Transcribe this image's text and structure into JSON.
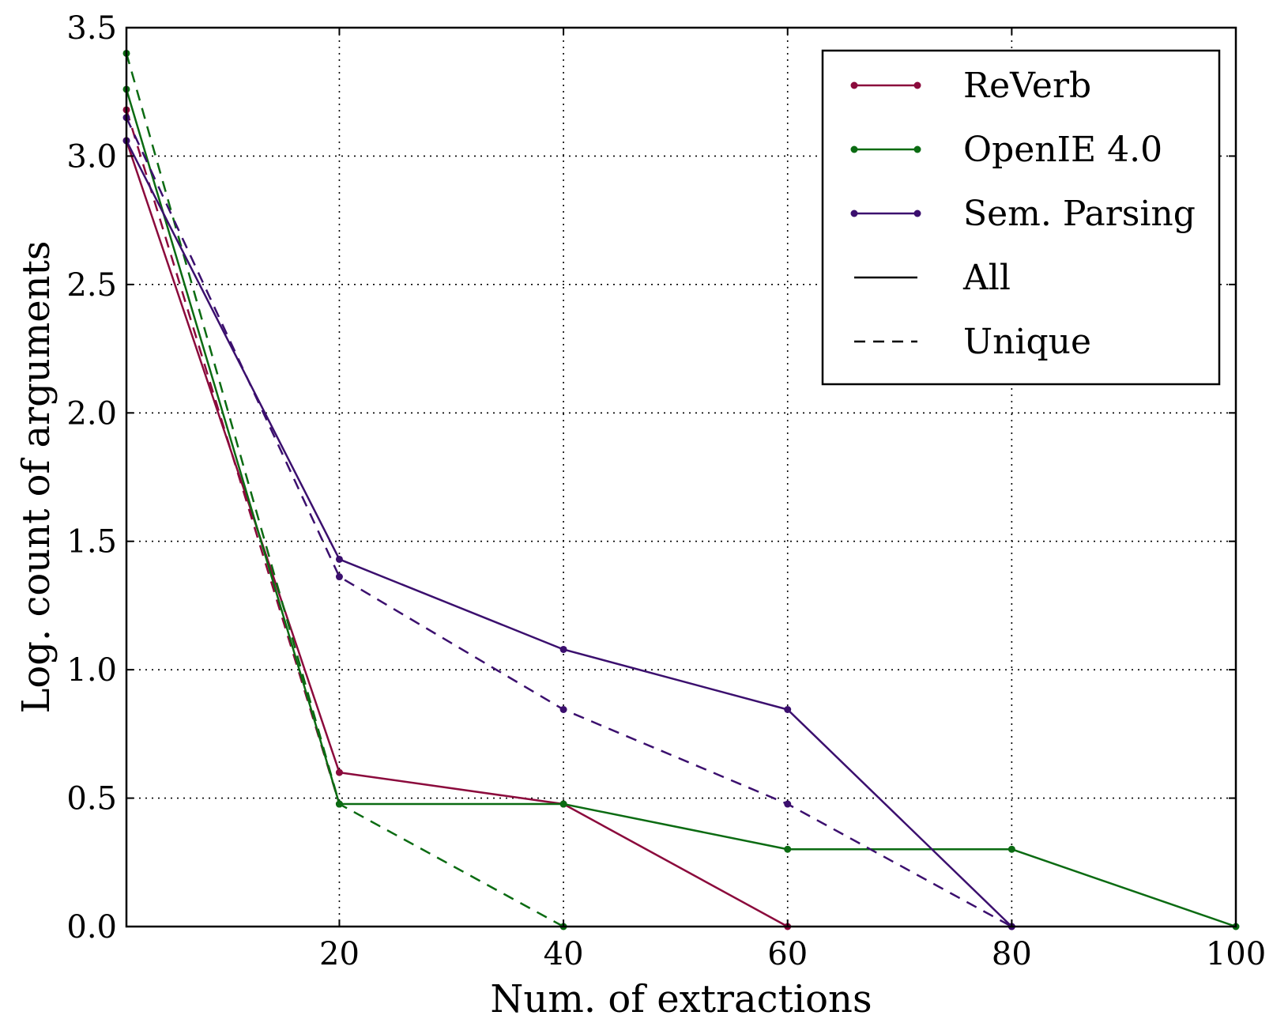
{
  "chart_data": {
    "type": "line",
    "title": "",
    "xlabel": "Num. of extractions",
    "ylabel": "Log. count of arguments",
    "xlim": [
      1,
      100
    ],
    "ylim": [
      0.0,
      3.5
    ],
    "xticks": [
      20,
      40,
      60,
      80,
      100
    ],
    "xtick_labels": [
      "20",
      "40",
      "60",
      "80",
      "100"
    ],
    "yticks": [
      0.0,
      0.5,
      1.0,
      1.5,
      2.0,
      2.5,
      3.0,
      3.5
    ],
    "ytick_labels": [
      "0.0",
      "0.5",
      "1.0",
      "1.5",
      "2.0",
      "2.5",
      "3.0",
      "3.5"
    ],
    "grid": true,
    "legend_position": "top-right",
    "colors": {
      "ReVerb": "#8b0a3c",
      "OpenIE 4.0": "#0b6b12",
      "Sem. Parsing": "#3b0f6e"
    },
    "legend": [
      {
        "label": "ReVerb",
        "kind": "series",
        "color": "#8b0a3c"
      },
      {
        "label": "OpenIE 4.0",
        "kind": "series",
        "color": "#0b6b12"
      },
      {
        "label": "Sem. Parsing",
        "kind": "series",
        "color": "#3b0f6e"
      },
      {
        "label": "All",
        "kind": "style",
        "style": "solid",
        "color": "#000000"
      },
      {
        "label": "Unique",
        "kind": "style",
        "style": "dashed",
        "color": "#000000"
      }
    ],
    "series": [
      {
        "name": "ReVerb",
        "variant": "All",
        "style": "solid",
        "color": "#8b0a3c",
        "x": [
          1,
          20,
          40,
          60
        ],
        "y": [
          3.06,
          0.6,
          0.477,
          0.0
        ]
      },
      {
        "name": "ReVerb",
        "variant": "Unique",
        "style": "dashed",
        "color": "#8b0a3c",
        "x": [
          1,
          20
        ],
        "y": [
          3.18,
          0.477
        ]
      },
      {
        "name": "OpenIE 4.0",
        "variant": "All",
        "style": "solid",
        "color": "#0b6b12",
        "x": [
          1,
          20,
          40,
          60,
          80,
          100
        ],
        "y": [
          3.26,
          0.477,
          0.477,
          0.301,
          0.301,
          0.0
        ]
      },
      {
        "name": "OpenIE 4.0",
        "variant": "Unique",
        "style": "dashed",
        "color": "#0b6b12",
        "x": [
          1,
          20,
          40
        ],
        "y": [
          3.4,
          0.477,
          0.0
        ]
      },
      {
        "name": "Sem. Parsing",
        "variant": "All",
        "style": "solid",
        "color": "#3b0f6e",
        "x": [
          1,
          20,
          40,
          60,
          80
        ],
        "y": [
          3.06,
          1.43,
          1.079,
          0.845,
          0.0
        ]
      },
      {
        "name": "Sem. Parsing",
        "variant": "Unique",
        "style": "dashed",
        "color": "#3b0f6e",
        "x": [
          1,
          20,
          40,
          60,
          80
        ],
        "y": [
          3.15,
          1.362,
          0.845,
          0.477,
          0.0
        ]
      }
    ]
  }
}
